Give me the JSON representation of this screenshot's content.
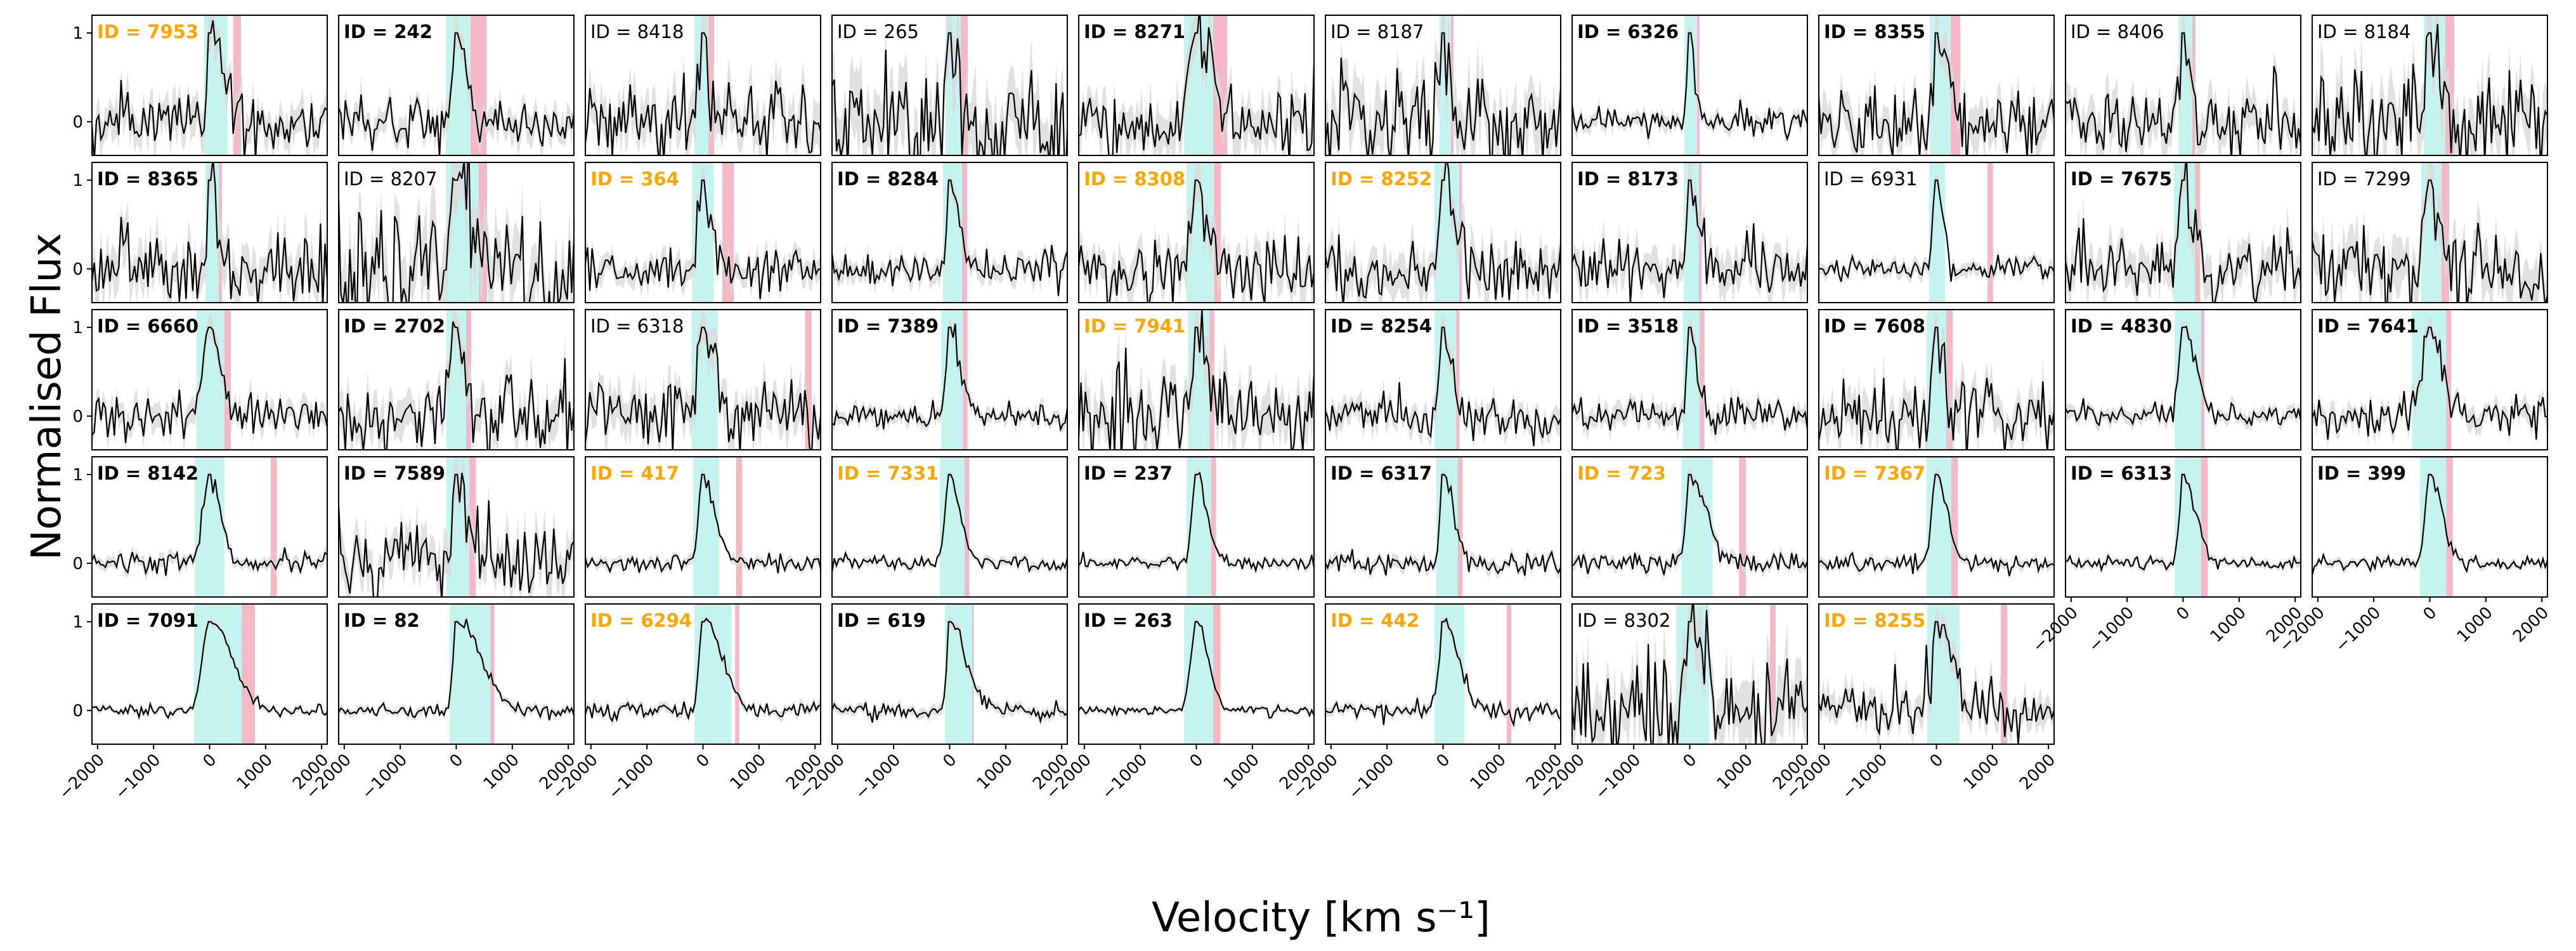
{
  "chart_data": {
    "type": "line",
    "layout": "grid of small multiples, 5 rows x 10 columns, shared axes",
    "xlabel": "Velocity [km s⁻¹]",
    "ylabel": "Normalised Flux",
    "xlim": [
      -2100,
      2100
    ],
    "ylim": [
      -0.38,
      1.2
    ],
    "xticks": [
      "−2000",
      "−1000",
      "0",
      "1000",
      "2000"
    ],
    "xtick_values": [
      -2000,
      -1000,
      0,
      1000,
      2000
    ],
    "yticks": [
      "0",
      "1"
    ],
    "ytick_values": [
      0,
      1
    ],
    "grid": false,
    "colors": {
      "line": "#000000",
      "error_band": "#d9d9d9",
      "cyan_region": "#7fe6da",
      "red_region": "#f09aae",
      "label_highlight": "#ffa500",
      "label_default": "#000000"
    },
    "panels": [
      {
        "label": "ID = 7953",
        "style": "orange",
        "cyan": [
          -100,
          320
        ],
        "red": [
          420,
          560
        ],
        "noise": 0.18
      },
      {
        "label": "ID = 242",
        "style": "bold",
        "cyan": [
          -187,
          255
        ],
        "red": [
          255,
          540
        ],
        "noise": 0.15
      },
      {
        "label": "ID = 8418",
        "style": "normal",
        "cyan": [
          -153,
          96
        ],
        "red": [
          96,
          198
        ],
        "noise": 0.22
      },
      {
        "label": "ID = 265",
        "style": "normal",
        "cyan": [
          -74,
          198
        ],
        "red": [
          198,
          323
        ],
        "noise": 0.35
      },
      {
        "label": "ID = 8271",
        "style": "bold",
        "cyan": [
          -221,
          300
        ],
        "red": [
          300,
          549
        ],
        "noise": 0.22
      },
      {
        "label": "ID = 8187",
        "style": "normal",
        "cyan": [
          -62,
          141
        ],
        "red": [
          141,
          187
        ],
        "noise": 0.28
      },
      {
        "label": "ID = 6326",
        "style": "bold",
        "cyan": [
          -96,
          130
        ],
        "red": [
          130,
          175
        ],
        "noise": 0.08
      },
      {
        "label": "ID = 8355",
        "style": "bold",
        "cyan": [
          -119,
          255
        ],
        "red": [
          255,
          425
        ],
        "noise": 0.2
      },
      {
        "label": "ID = 8406",
        "style": "normal",
        "cyan": [
          -85,
          164
        ],
        "red": [
          164,
          220
        ],
        "noise": 0.2
      },
      {
        "label": "ID = 8184",
        "style": "normal",
        "cyan": [
          -108,
          277
        ],
        "red": [
          277,
          436
        ],
        "noise": 0.3
      },
      {
        "label": "ID = 8365",
        "style": "bold",
        "cyan": [
          -74,
          164
        ],
        "red": [
          164,
          220
        ],
        "noise": 0.22
      },
      {
        "label": "ID = 8207",
        "style": "normal",
        "cyan": [
          -187,
          402
        ],
        "red": [
          402,
          550
        ],
        "noise": 0.35
      },
      {
        "label": "ID = 364",
        "style": "orange",
        "cyan": [
          -198,
          187
        ],
        "red": [
          345,
          549
        ],
        "noise": 0.12
      },
      {
        "label": "ID = 8284",
        "style": "bold",
        "cyan": [
          -119,
          221
        ],
        "red": [
          221,
          311
        ],
        "noise": 0.1
      },
      {
        "label": "ID = 8308",
        "style": "orange",
        "cyan": [
          -175,
          300
        ],
        "red": [
          311,
          436
        ],
        "noise": 0.2
      },
      {
        "label": "ID = 8252",
        "style": "orange",
        "cyan": [
          -153,
          288
        ],
        "red": [
          288,
          334
        ],
        "noise": 0.2
      },
      {
        "label": "ID = 8173",
        "style": "bold",
        "cyan": [
          -108,
          164
        ],
        "red": [
          164,
          210
        ],
        "noise": 0.18
      },
      {
        "label": "ID = 6931",
        "style": "normal",
        "cyan": [
          -130,
          153
        ],
        "red": [
          910,
          1010
        ],
        "noise": 0.07
      },
      {
        "label": "ID = 7675",
        "style": "bold",
        "cyan": [
          -164,
          210
        ],
        "red": [
          210,
          300
        ],
        "noise": 0.2
      },
      {
        "label": "ID = 7299",
        "style": "normal",
        "cyan": [
          -153,
          210
        ],
        "red": [
          210,
          345
        ],
        "noise": 0.25
      },
      {
        "label": "ID = 6660",
        "style": "bold",
        "cyan": [
          -235,
          265
        ],
        "red": [
          265,
          380
        ],
        "noise": 0.12
      },
      {
        "label": "ID = 2702",
        "style": "bold",
        "cyan": [
          -176,
          176
        ],
        "red": [
          176,
          265
        ],
        "noise": 0.2
      },
      {
        "label": "ID = 6318",
        "style": "normal",
        "cyan": [
          -205,
          265
        ],
        "red": [
          1820,
          1940
        ],
        "noise": 0.2
      },
      {
        "label": "ID = 7389",
        "style": "bold",
        "cyan": [
          -150,
          235
        ],
        "red": [
          235,
          320
        ],
        "noise": 0.07
      },
      {
        "label": "ID = 7941",
        "style": "orange",
        "cyan": [
          -150,
          235
        ],
        "red": [
          235,
          320
        ],
        "noise": 0.25
      },
      {
        "label": "ID = 8254",
        "style": "bold",
        "cyan": [
          -150,
          235
        ],
        "red": [
          235,
          290
        ],
        "noise": 0.12
      },
      {
        "label": "ID = 3518",
        "style": "bold",
        "cyan": [
          -120,
          175
        ],
        "red": [
          175,
          265
        ],
        "noise": 0.1
      },
      {
        "label": "ID = 7608",
        "style": "bold",
        "cyan": [
          -175,
          175
        ],
        "red": [
          175,
          290
        ],
        "noise": 0.2
      },
      {
        "label": "ID = 4830",
        "style": "bold",
        "cyan": [
          -150,
          320
        ],
        "red": [
          320,
          380
        ],
        "noise": 0.07
      },
      {
        "label": "ID = 7641",
        "style": "bold",
        "cyan": [
          -320,
          295
        ],
        "red": [
          295,
          380
        ],
        "noise": 0.1
      },
      {
        "label": "ID = 8142",
        "style": "bold",
        "cyan": [
          -265,
          265
        ],
        "red": [
          1090,
          1200
        ],
        "noise": 0.06
      },
      {
        "label": "ID = 7589",
        "style": "bold",
        "cyan": [
          -175,
          235
        ],
        "red": [
          235,
          350
        ],
        "noise": 0.22
      },
      {
        "label": "ID = 417",
        "style": "orange",
        "cyan": [
          -175,
          290
        ],
        "red": [
          590,
          700
        ],
        "noise": 0.05
      },
      {
        "label": "ID = 7331",
        "style": "orange",
        "cyan": [
          -175,
          265
        ],
        "red": [
          265,
          350
        ],
        "noise": 0.04
      },
      {
        "label": "ID = 237",
        "style": "bold",
        "cyan": [
          -175,
          265
        ],
        "red": [
          265,
          350
        ],
        "noise": 0.04
      },
      {
        "label": "ID = 6317",
        "style": "bold",
        "cyan": [
          -120,
          265
        ],
        "red": [
          265,
          350
        ],
        "noise": 0.06
      },
      {
        "label": "ID = 723",
        "style": "orange",
        "cyan": [
          -150,
          410
        ],
        "red": [
          880,
          1000
        ],
        "noise": 0.06
      },
      {
        "label": "ID = 7367",
        "style": "orange",
        "cyan": [
          -175,
          265
        ],
        "red": [
          265,
          380
        ],
        "noise": 0.05
      },
      {
        "label": "ID = 6313",
        "style": "bold",
        "cyan": [
          -150,
          320
        ],
        "red": [
          320,
          440
        ],
        "noise": 0.04
      },
      {
        "label": "ID = 399",
        "style": "bold",
        "cyan": [
          -175,
          295
        ],
        "red": [
          295,
          410
        ],
        "noise": 0.04
      },
      {
        "label": "ID = 7091",
        "style": "bold",
        "cyan": [
          -278,
          572
        ],
        "red": [
          572,
          809
        ],
        "noise": 0.03
      },
      {
        "label": "ID = 82",
        "style": "bold",
        "cyan": [
          -119,
          606
        ],
        "red": [
          606,
          680
        ],
        "noise": 0.04
      },
      {
        "label": "ID = 6294",
        "style": "orange",
        "cyan": [
          -153,
          504
        ],
        "red": [
          572,
          650
        ],
        "noise": 0.05
      },
      {
        "label": "ID = 619",
        "style": "bold",
        "cyan": [
          -85,
          402
        ],
        "red": [
          402,
          430
        ],
        "noise": 0.05
      },
      {
        "label": "ID = 263",
        "style": "bold",
        "cyan": [
          -221,
          300
        ],
        "red": [
          300,
          430
        ],
        "noise": 0.03
      },
      {
        "label": "ID = 442",
        "style": "orange",
        "cyan": [
          -153,
          379
        ],
        "red": [
          1137,
          1217
        ],
        "noise": 0.05
      },
      {
        "label": "ID = 8302",
        "style": "normal",
        "cyan": [
          -243,
          345
        ],
        "red": [
          1432,
          1534
        ],
        "noise": 0.3
      },
      {
        "label": "ID = 8255",
        "style": "orange",
        "cyan": [
          -164,
          413
        ],
        "red": [
          1149,
          1262
        ],
        "noise": 0.15
      }
    ]
  }
}
